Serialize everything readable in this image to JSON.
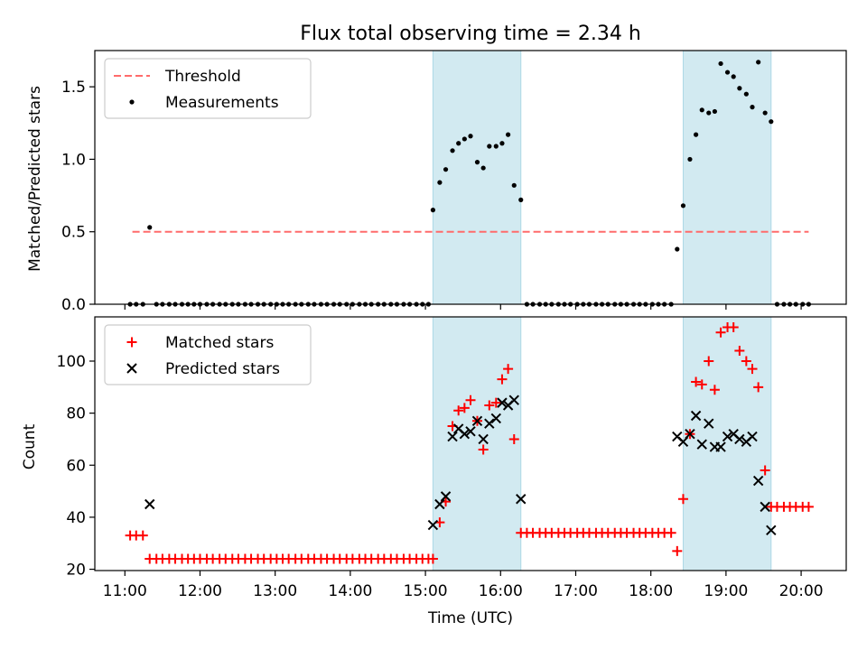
{
  "title": "Flux total observing time = 2.34 h",
  "colors": {
    "threshold": "#ff6b6b",
    "measurement": "#000000",
    "matched": "#ff0000",
    "predicted": "#000000",
    "shade": "#add8e6"
  },
  "chart_data": [
    {
      "type": "scatter",
      "ylabel": "Matched/Predicted stars",
      "ylim": [
        0,
        1.75
      ],
      "xlim": [
        10.6,
        20.6
      ],
      "yticks": [
        0.0,
        0.5,
        1.0,
        1.5
      ],
      "ytick_labels": [
        "0.0",
        "0.5",
        "1.0",
        "1.5"
      ],
      "legend_position": "upper-left",
      "threshold": {
        "name": "Threshold",
        "value": 0.5,
        "x_range": [
          11.1,
          20.1
        ]
      },
      "shaded_spans": [
        [
          15.1,
          16.27
        ],
        [
          18.43,
          19.6
        ]
      ],
      "series": [
        {
          "name": "Measurements",
          "points": [
            [
              11.07,
              0
            ],
            [
              11.15,
              0
            ],
            [
              11.24,
              0
            ],
            [
              11.33,
              0.53
            ],
            [
              11.42,
              0
            ],
            [
              11.5,
              0
            ],
            [
              11.59,
              0
            ],
            [
              11.67,
              0
            ],
            [
              11.76,
              0
            ],
            [
              11.84,
              0
            ],
            [
              11.92,
              0
            ],
            [
              12.0,
              0
            ],
            [
              12.09,
              0
            ],
            [
              12.17,
              0
            ],
            [
              12.26,
              0
            ],
            [
              12.34,
              0
            ],
            [
              12.43,
              0
            ],
            [
              12.51,
              0
            ],
            [
              12.6,
              0
            ],
            [
              12.68,
              0
            ],
            [
              12.77,
              0
            ],
            [
              12.85,
              0
            ],
            [
              12.94,
              0
            ],
            [
              13.02,
              0
            ],
            [
              13.1,
              0
            ],
            [
              13.18,
              0
            ],
            [
              13.27,
              0
            ],
            [
              13.35,
              0
            ],
            [
              13.44,
              0
            ],
            [
              13.52,
              0
            ],
            [
              13.61,
              0
            ],
            [
              13.69,
              0
            ],
            [
              13.78,
              0
            ],
            [
              13.86,
              0
            ],
            [
              13.95,
              0
            ],
            [
              14.03,
              0
            ],
            [
              14.12,
              0
            ],
            [
              14.2,
              0
            ],
            [
              14.28,
              0
            ],
            [
              14.37,
              0
            ],
            [
              14.45,
              0
            ],
            [
              14.54,
              0
            ],
            [
              14.62,
              0
            ],
            [
              14.71,
              0
            ],
            [
              14.79,
              0
            ],
            [
              14.88,
              0
            ],
            [
              14.96,
              0
            ],
            [
              15.04,
              0
            ],
            [
              15.1,
              0.65
            ],
            [
              15.19,
              0.84
            ],
            [
              15.27,
              0.93
            ],
            [
              15.36,
              1.06
            ],
            [
              15.44,
              1.11
            ],
            [
              15.52,
              1.14
            ],
            [
              15.6,
              1.16
            ],
            [
              15.69,
              0.98
            ],
            [
              15.77,
              0.94
            ],
            [
              15.85,
              1.09
            ],
            [
              15.94,
              1.09
            ],
            [
              16.02,
              1.11
            ],
            [
              16.1,
              1.17
            ],
            [
              16.18,
              0.82
            ],
            [
              16.27,
              0.72
            ],
            [
              16.35,
              0
            ],
            [
              16.43,
              0
            ],
            [
              16.52,
              0
            ],
            [
              16.6,
              0
            ],
            [
              16.68,
              0
            ],
            [
              16.77,
              0
            ],
            [
              16.85,
              0
            ],
            [
              16.93,
              0
            ],
            [
              17.02,
              0
            ],
            [
              17.1,
              0
            ],
            [
              17.18,
              0
            ],
            [
              17.27,
              0
            ],
            [
              17.35,
              0
            ],
            [
              17.43,
              0
            ],
            [
              17.52,
              0
            ],
            [
              17.6,
              0
            ],
            [
              17.68,
              0
            ],
            [
              17.77,
              0
            ],
            [
              17.85,
              0
            ],
            [
              17.93,
              0
            ],
            [
              18.02,
              0
            ],
            [
              18.1,
              0
            ],
            [
              18.18,
              0
            ],
            [
              18.27,
              0
            ],
            [
              18.35,
              0.38
            ],
            [
              18.43,
              0.68
            ],
            [
              18.52,
              1.0
            ],
            [
              18.6,
              1.17
            ],
            [
              18.68,
              1.34
            ],
            [
              18.77,
              1.32
            ],
            [
              18.85,
              1.33
            ],
            [
              18.93,
              1.66
            ],
            [
              19.02,
              1.6
            ],
            [
              19.1,
              1.57
            ],
            [
              19.18,
              1.49
            ],
            [
              19.27,
              1.45
            ],
            [
              19.35,
              1.36
            ],
            [
              19.43,
              1.67
            ],
            [
              19.52,
              1.32
            ],
            [
              19.6,
              1.26
            ],
            [
              19.68,
              0
            ],
            [
              19.77,
              0
            ],
            [
              19.85,
              0
            ],
            [
              19.93,
              0
            ],
            [
              20.02,
              0
            ],
            [
              20.1,
              0
            ]
          ]
        }
      ]
    },
    {
      "type": "scatter",
      "xlabel": "Time (UTC)",
      "ylabel": "Count",
      "ylim": [
        19.5,
        117
      ],
      "xlim": [
        10.6,
        20.6
      ],
      "yticks": [
        20,
        40,
        60,
        80,
        100
      ],
      "ytick_labels": [
        "20",
        "40",
        "60",
        "80",
        "100"
      ],
      "xticks": [
        11,
        12,
        13,
        14,
        15,
        16,
        17,
        18,
        19,
        20
      ],
      "xtick_labels": [
        "11:00",
        "12:00",
        "13:00",
        "14:00",
        "15:00",
        "16:00",
        "17:00",
        "18:00",
        "19:00",
        "20:00"
      ],
      "legend_position": "upper-left",
      "shaded_spans": [
        [
          15.1,
          16.27
        ],
        [
          18.43,
          19.6
        ]
      ],
      "series": [
        {
          "name": "Matched stars",
          "marker": "plus",
          "points": [
            [
              11.07,
              33
            ],
            [
              11.15,
              33
            ],
            [
              11.24,
              33
            ],
            [
              11.33,
              24
            ],
            [
              11.42,
              24
            ],
            [
              11.5,
              24
            ],
            [
              11.59,
              24
            ],
            [
              11.67,
              24
            ],
            [
              11.76,
              24
            ],
            [
              11.84,
              24
            ],
            [
              11.92,
              24
            ],
            [
              12.0,
              24
            ],
            [
              12.09,
              24
            ],
            [
              12.17,
              24
            ],
            [
              12.26,
              24
            ],
            [
              12.34,
              24
            ],
            [
              12.43,
              24
            ],
            [
              12.51,
              24
            ],
            [
              12.6,
              24
            ],
            [
              12.68,
              24
            ],
            [
              12.77,
              24
            ],
            [
              12.85,
              24
            ],
            [
              12.94,
              24
            ],
            [
              13.02,
              24
            ],
            [
              13.1,
              24
            ],
            [
              13.18,
              24
            ],
            [
              13.27,
              24
            ],
            [
              13.35,
              24
            ],
            [
              13.44,
              24
            ],
            [
              13.52,
              24
            ],
            [
              13.61,
              24
            ],
            [
              13.69,
              24
            ],
            [
              13.78,
              24
            ],
            [
              13.86,
              24
            ],
            [
              13.95,
              24
            ],
            [
              14.03,
              24
            ],
            [
              14.12,
              24
            ],
            [
              14.2,
              24
            ],
            [
              14.28,
              24
            ],
            [
              14.37,
              24
            ],
            [
              14.45,
              24
            ],
            [
              14.54,
              24
            ],
            [
              14.62,
              24
            ],
            [
              14.71,
              24
            ],
            [
              14.79,
              24
            ],
            [
              14.88,
              24
            ],
            [
              14.96,
              24
            ],
            [
              15.04,
              24
            ],
            [
              15.1,
              24
            ],
            [
              15.19,
              38
            ],
            [
              15.27,
              46
            ],
            [
              15.36,
              75
            ],
            [
              15.44,
              81
            ],
            [
              15.52,
              82
            ],
            [
              15.6,
              85
            ],
            [
              15.69,
              77
            ],
            [
              15.77,
              66
            ],
            [
              15.85,
              83
            ],
            [
              15.94,
              84
            ],
            [
              16.02,
              93
            ],
            [
              16.1,
              97
            ],
            [
              16.18,
              70
            ],
            [
              16.27,
              34
            ],
            [
              16.35,
              34
            ],
            [
              16.43,
              34
            ],
            [
              16.52,
              34
            ],
            [
              16.6,
              34
            ],
            [
              16.68,
              34
            ],
            [
              16.77,
              34
            ],
            [
              16.85,
              34
            ],
            [
              16.93,
              34
            ],
            [
              17.02,
              34
            ],
            [
              17.1,
              34
            ],
            [
              17.18,
              34
            ],
            [
              17.27,
              34
            ],
            [
              17.35,
              34
            ],
            [
              17.43,
              34
            ],
            [
              17.52,
              34
            ],
            [
              17.6,
              34
            ],
            [
              17.68,
              34
            ],
            [
              17.77,
              34
            ],
            [
              17.85,
              34
            ],
            [
              17.93,
              34
            ],
            [
              18.02,
              34
            ],
            [
              18.1,
              34
            ],
            [
              18.18,
              34
            ],
            [
              18.27,
              34
            ],
            [
              18.35,
              27
            ],
            [
              18.43,
              47
            ],
            [
              18.52,
              72
            ],
            [
              18.6,
              92
            ],
            [
              18.68,
              91
            ],
            [
              18.77,
              100
            ],
            [
              18.85,
              89
            ],
            [
              18.93,
              111
            ],
            [
              19.02,
              113
            ],
            [
              19.1,
              113
            ],
            [
              19.18,
              104
            ],
            [
              19.27,
              100
            ],
            [
              19.35,
              97
            ],
            [
              19.43,
              90
            ],
            [
              19.52,
              58
            ],
            [
              19.6,
              44
            ],
            [
              19.68,
              44
            ],
            [
              19.77,
              44
            ],
            [
              19.85,
              44
            ],
            [
              19.93,
              44
            ],
            [
              20.02,
              44
            ],
            [
              20.1,
              44
            ]
          ]
        },
        {
          "name": "Predicted stars",
          "marker": "x",
          "points": [
            [
              11.33,
              45
            ],
            [
              15.1,
              37
            ],
            [
              15.19,
              45
            ],
            [
              15.27,
              48
            ],
            [
              15.36,
              71
            ],
            [
              15.44,
              74
            ],
            [
              15.52,
              72
            ],
            [
              15.6,
              73
            ],
            [
              15.69,
              77
            ],
            [
              15.77,
              70
            ],
            [
              15.85,
              76
            ],
            [
              15.94,
              78
            ],
            [
              16.02,
              84
            ],
            [
              16.1,
              83
            ],
            [
              16.18,
              85
            ],
            [
              16.27,
              47
            ],
            [
              18.35,
              71
            ],
            [
              18.43,
              69
            ],
            [
              18.52,
              72
            ],
            [
              18.6,
              79
            ],
            [
              18.68,
              68
            ],
            [
              18.77,
              76
            ],
            [
              18.85,
              67
            ],
            [
              18.93,
              67
            ],
            [
              19.02,
              71
            ],
            [
              19.1,
              72
            ],
            [
              19.18,
              70
            ],
            [
              19.27,
              69
            ],
            [
              19.35,
              71
            ],
            [
              19.43,
              54
            ],
            [
              19.52,
              44
            ],
            [
              19.6,
              35
            ]
          ]
        }
      ]
    }
  ]
}
